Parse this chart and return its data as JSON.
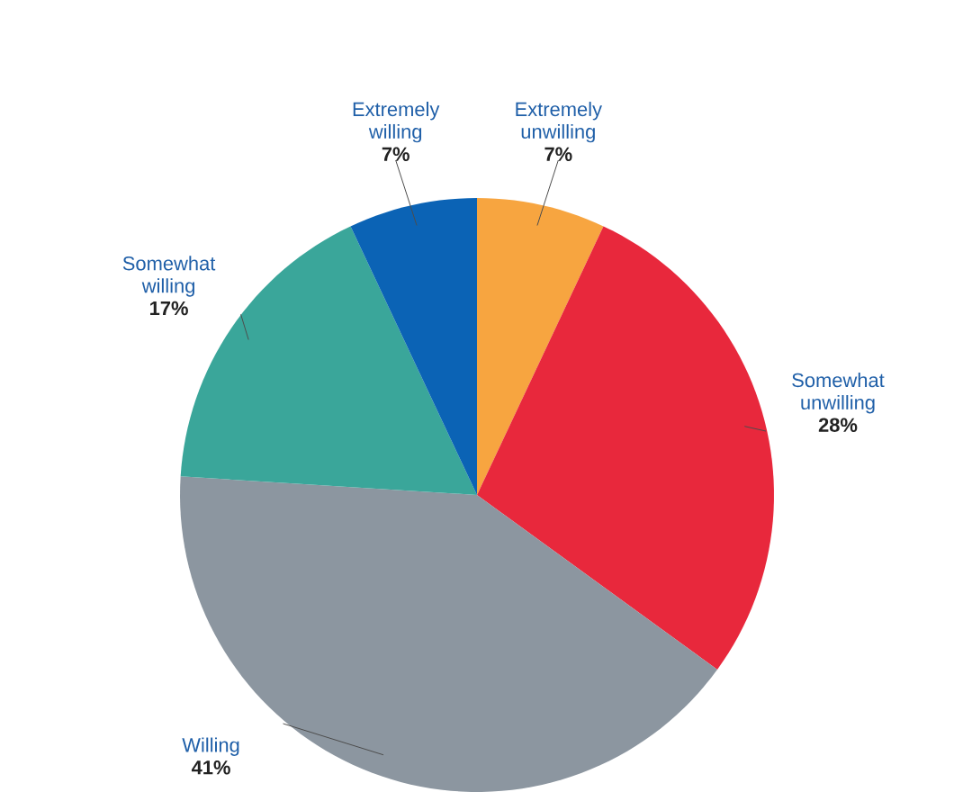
{
  "chart_data": {
    "type": "pie",
    "categories": [
      "Extremely unwilling",
      "Somewhat unwilling",
      "Willing",
      "Somewhat willing",
      "Extremely willing"
    ],
    "values": [
      7,
      28,
      41,
      17,
      7
    ],
    "value_labels": [
      "7%",
      "28%",
      "41%",
      "17%",
      "7%"
    ],
    "colors": [
      "#f7a540",
      "#e8283c",
      "#8c96a0",
      "#3aa69a",
      "#0b63b5"
    ],
    "legend": false
  }
}
